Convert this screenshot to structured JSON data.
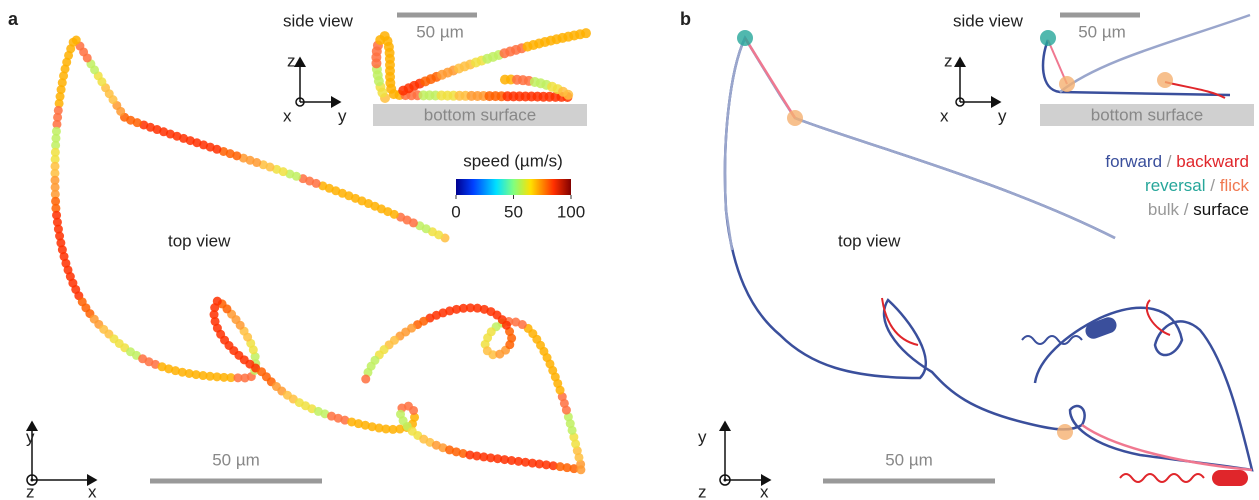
{
  "panel_a": {
    "label": "a",
    "side_view": {
      "title": "side view",
      "scale_bar": "50 µm",
      "surface": "bottom surface",
      "axes": {
        "z": "z",
        "x": "x",
        "y": "y"
      }
    },
    "top_view": "top view",
    "colorbar": {
      "label": "speed (µm/s)",
      "lim": [
        0,
        100
      ],
      "ticks": [
        0,
        50,
        100
      ]
    },
    "scale_bar": "50 µm",
    "axes": {
      "y": "y",
      "z": "z",
      "x": "x"
    }
  },
  "panel_b": {
    "label": "b",
    "side_view": {
      "title": "side view",
      "scale_bar": "50 µm",
      "surface": "bottom surface",
      "axes": {
        "z": "z",
        "x": "x",
        "y": "y"
      }
    },
    "top_view": "top view",
    "legend": {
      "separator": "/",
      "rows": [
        [
          "forward",
          "backward"
        ],
        [
          "reversal",
          "flick"
        ],
        [
          "bulk",
          "surface"
        ]
      ]
    },
    "scale_bar": "50 µm",
    "axes": {
      "y": "y",
      "z": "z",
      "x": "x"
    }
  }
}
